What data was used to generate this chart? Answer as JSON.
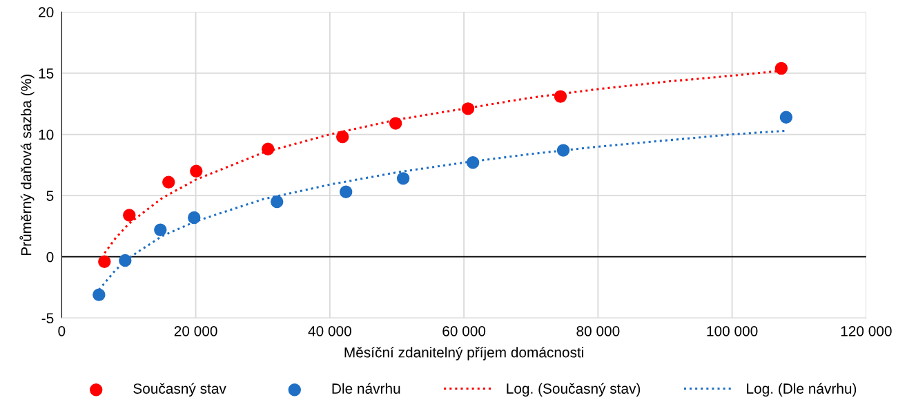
{
  "chart_data": {
    "type": "scatter",
    "xlabel": "Měsíční zdanitelný příjem domácnosti",
    "ylabel": "Průměrný daňová sazba (%)",
    "xlim": [
      0,
      120000
    ],
    "xticks": [
      0,
      {
        "value": 20000,
        "label": "20 000"
      },
      {
        "value": 40000,
        "label": "40 000"
      },
      {
        "value": 60000,
        "label": "60 000"
      },
      {
        "value": 80000,
        "label": "80 000"
      },
      {
        "value": 100000,
        "label": "100 000"
      },
      {
        "value": 120000,
        "label": "120 000"
      }
    ],
    "ylim": [
      -5,
      20
    ],
    "yticks": [
      -5,
      0,
      5,
      10,
      15,
      20
    ],
    "grid": true,
    "legend": "bottom",
    "ref_lines": [
      {
        "axis": "y",
        "value": 0,
        "color": "#000000",
        "line_style": "solid"
      }
    ],
    "series": [
      {
        "name": "Současný stav",
        "marker": "circle",
        "color": "#ff0000",
        "x": [
          6380,
          10085,
          15950,
          20070,
          30770,
          41890,
          49810,
          60610,
          74400,
          107340
        ],
        "values": [
          -0.4,
          3.4,
          6.1,
          7.0,
          8.8,
          9.8,
          10.9,
          12.1,
          13.1,
          15.4
        ]
      },
      {
        "name": "Dle návrhu",
        "marker": "circle",
        "color": "#1f6fc5",
        "x": [
          5560,
          9470,
          14720,
          19760,
          32110,
          42400,
          50940,
          61340,
          74820,
          108060
        ],
        "values": [
          -3.1,
          -0.3,
          2.2,
          3.2,
          4.5,
          5.3,
          6.4,
          7.7,
          8.7,
          11.4
        ]
      },
      {
        "name": "Log. (Současný stav)",
        "type": "line",
        "marker": "none",
        "line_style": "dotted",
        "color": "#ff0000",
        "x": [
          6400,
          8000,
          10000,
          15000,
          20000,
          30000,
          40000,
          50000,
          60000,
          70000,
          80000,
          90000,
          100000,
          107340
        ],
        "values": [
          0.3,
          1.5,
          2.7,
          4.8,
          6.3,
          8.5,
          10.0,
          11.2,
          12.1,
          13.0,
          13.7,
          14.3,
          14.8,
          15.2
        ]
      },
      {
        "name": "Log. (Dle návrhu)",
        "type": "line",
        "marker": "none",
        "line_style": "dotted",
        "color": "#1f6fc5",
        "x": [
          5560,
          8000,
          10000,
          15000,
          20000,
          30000,
          40000,
          50000,
          60000,
          70000,
          80000,
          90000,
          100000,
          108060
        ],
        "values": [
          -2.7,
          -1.1,
          -0.1,
          1.7,
          2.9,
          4.7,
          5.9,
          6.9,
          7.7,
          8.4,
          9.0,
          9.5,
          10.0,
          10.3
        ]
      }
    ]
  }
}
